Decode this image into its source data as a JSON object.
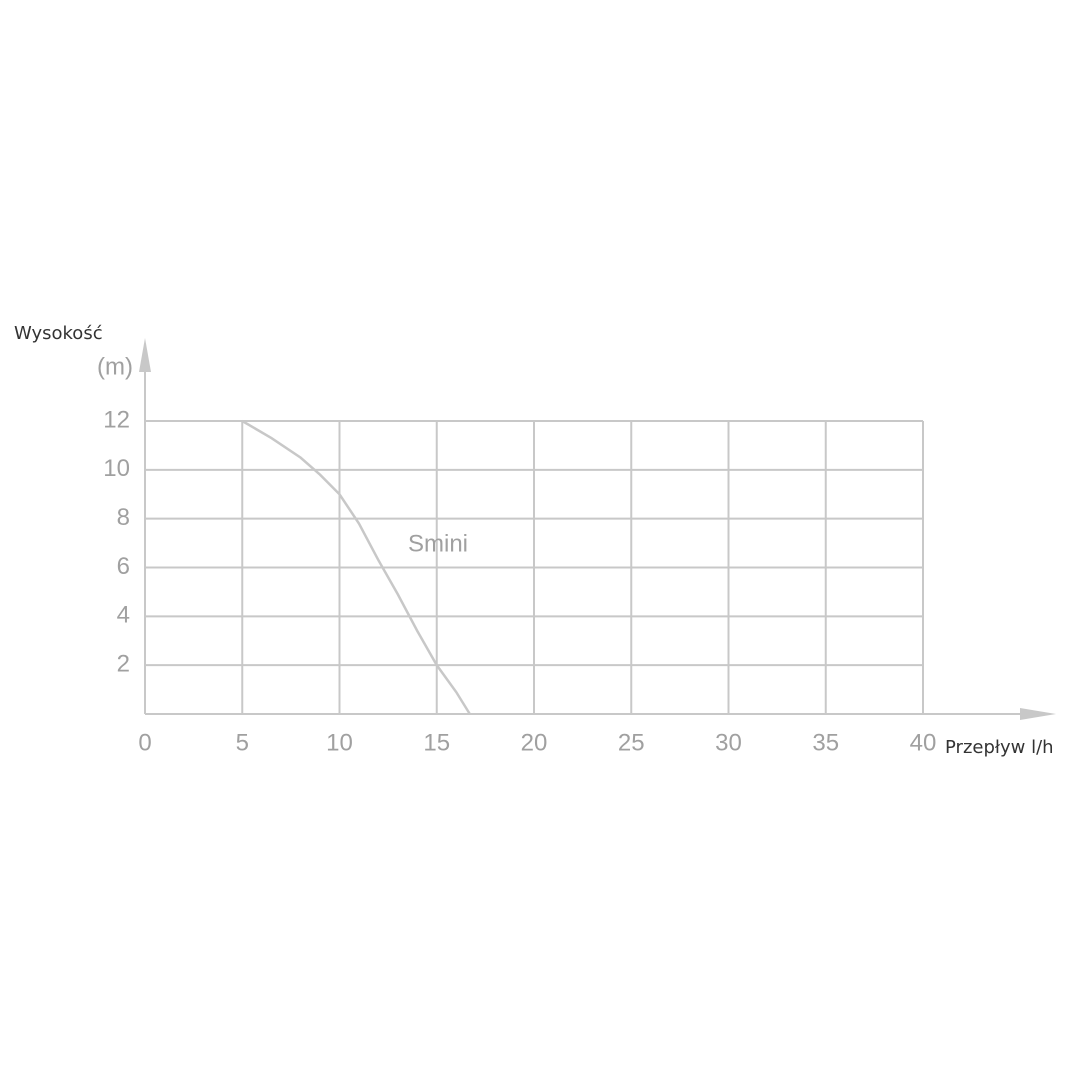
{
  "chart_data": {
    "type": "line",
    "y_label": "Wysokość",
    "y_unit": "(m)",
    "x_label": "Przepływ l/h",
    "x": [
      5,
      6.5,
      8,
      9,
      10,
      11,
      12,
      13,
      14,
      15,
      16,
      16.7
    ],
    "series": [
      {
        "name": "Smini",
        "color": "#c8c8c8",
        "values": [
          12,
          11.3,
          10.5,
          9.8,
          9,
          7.8,
          6.3,
          4.9,
          3.4,
          2,
          0.9,
          0
        ]
      }
    ],
    "xlim": [
      0,
      40
    ],
    "xticks": [
      0,
      5,
      10,
      15,
      20,
      25,
      30,
      35,
      40
    ],
    "ylim": [
      0,
      12
    ],
    "yticks": [
      2,
      4,
      6,
      8,
      10,
      12
    ],
    "grid": true
  }
}
